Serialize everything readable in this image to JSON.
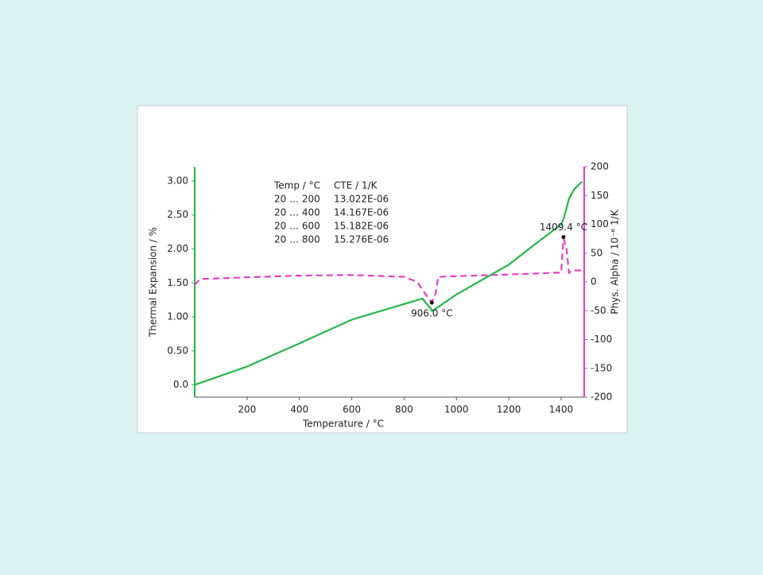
{
  "chart_data": {
    "type": "line",
    "xlabel": "Temperature / °C",
    "ylabel": "Thermal Expansion / %",
    "y2label": "Phys. Alpha / 10⁻⁶ 1/K",
    "xlim": [
      0,
      1488
    ],
    "ylim": [
      -0.18,
      3.21
    ],
    "y2lim": [
      -200,
      200
    ],
    "xticks": [
      200,
      400,
      600,
      800,
      1000,
      1200,
      1400
    ],
    "yticks": [
      {
        "value": 0,
        "label": "0.0"
      },
      {
        "value": 0.5,
        "label": "0.50"
      },
      {
        "value": 1,
        "label": "1.00"
      },
      {
        "value": 1.5,
        "label": "1.50"
      },
      {
        "value": 2,
        "label": "2.00"
      },
      {
        "value": 2.5,
        "label": "2.50"
      },
      {
        "value": 3,
        "label": "3.00"
      }
    ],
    "y2ticks": [
      -200,
      -150,
      -100,
      -50,
      0,
      50,
      100,
      150,
      200
    ],
    "series": [
      {
        "name": "Thermal Expansion",
        "color": "#22b84a",
        "axis": "y",
        "x": [
          0,
          200,
          400,
          600,
          800,
          870,
          900,
          906,
          920,
          1000,
          1100,
          1200,
          1300,
          1400,
          1410,
          1430,
          1450,
          1480
        ],
        "values": [
          0,
          0.27,
          0.61,
          0.96,
          1.19,
          1.27,
          1.13,
          1.09,
          1.12,
          1.33,
          1.55,
          1.77,
          2.07,
          2.36,
          2.45,
          2.74,
          2.88,
          2.99
        ]
      },
      {
        "name": "Phys. Alpha",
        "color": "#e040c0",
        "axis": "y2",
        "dashed": true,
        "x": [
          0,
          20,
          200,
          400,
          600,
          800,
          850,
          880,
          895,
          906,
          920,
          930,
          1200,
          1380,
          1400,
          1409,
          1420,
          1430,
          1445,
          1480
        ],
        "values": [
          -5,
          5,
          8,
          11,
          12,
          9,
          0,
          -20,
          -30,
          -35,
          -20,
          9,
          13,
          16,
          16,
          75,
          60,
          16,
          20,
          20
        ]
      }
    ],
    "annotations": [
      {
        "text": "906.0 °C",
        "x": 906,
        "y": -36
      },
      {
        "text": "1409.4 °C",
        "x": 1409,
        "y": 78
      }
    ],
    "cte_table": {
      "columns": [
        "Temp / °C",
        "CTE / 1/K"
      ],
      "rows": [
        [
          "20 … 200",
          "13.022E-06"
        ],
        [
          "20 … 400",
          "14.167E-06"
        ],
        [
          "20 … 600",
          "15.182E-06"
        ],
        [
          "20 … 800",
          "15.276E-06"
        ]
      ]
    }
  }
}
